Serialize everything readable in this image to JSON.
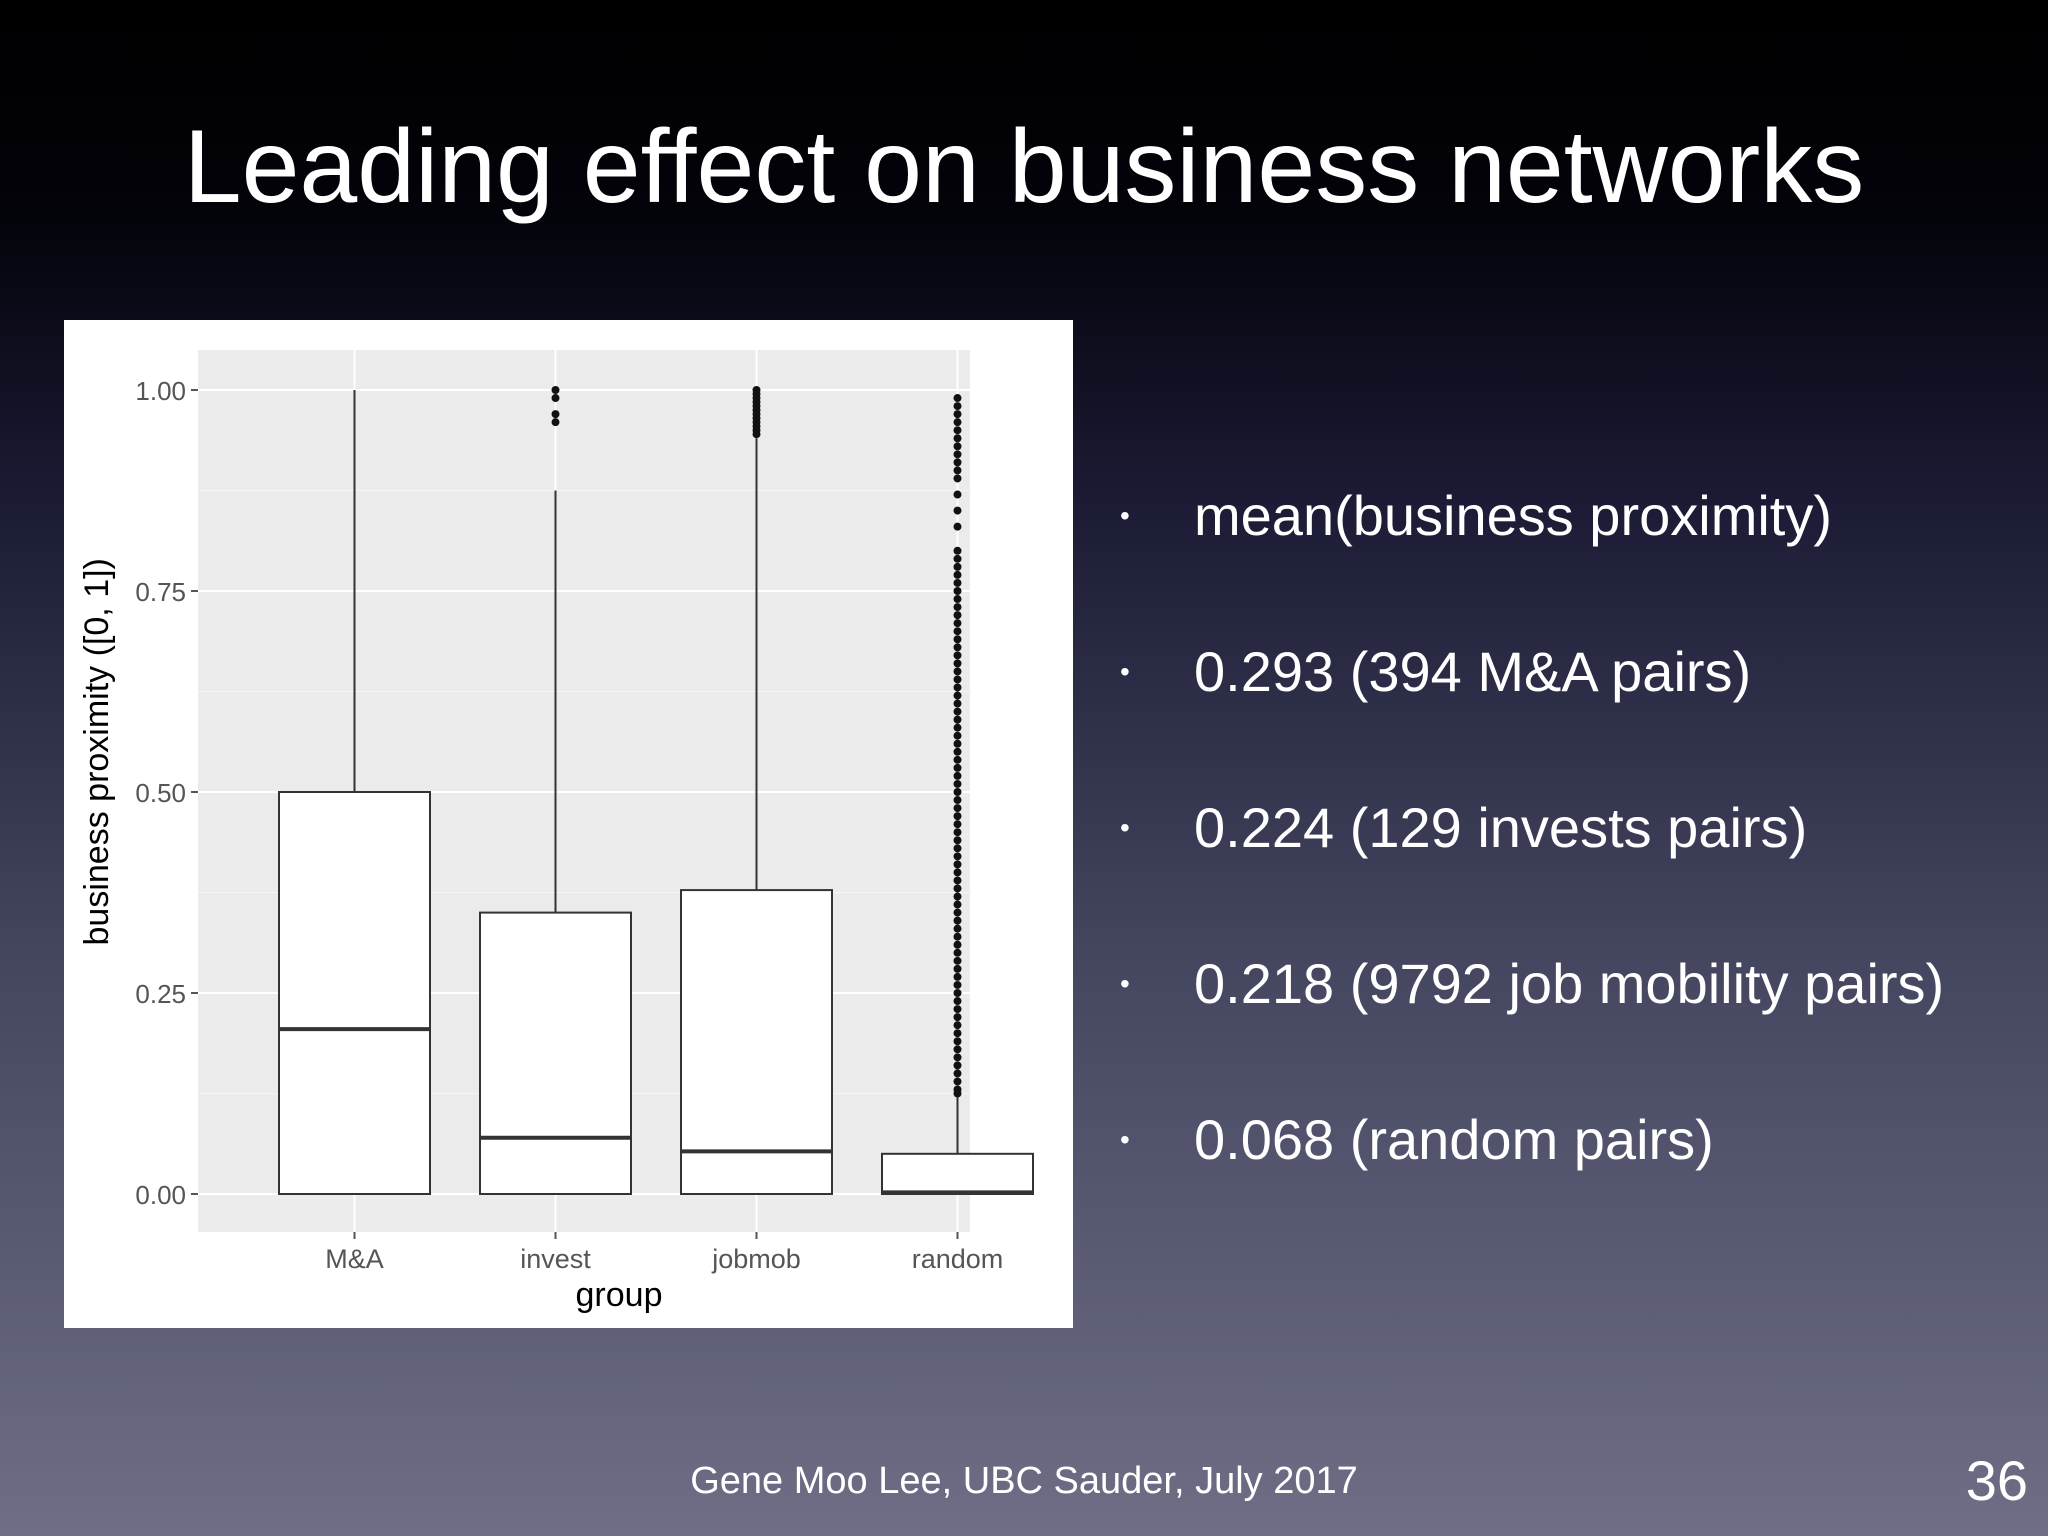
{
  "slide": {
    "title": "Leading effect on business networks",
    "footer": "Gene Moo Lee, UBC Sauder, July 2017",
    "page_number": "36"
  },
  "bullets": [
    "mean(business proximity)",
    "0.293 (394 M&A pairs)",
    "0.224 (129 invests pairs)",
    "0.218 (9792 job mobility pairs)",
    "0.068 (random pairs)"
  ],
  "chart_data": {
    "type": "box",
    "xlabel": "group",
    "ylabel": "business proximity ([0, 1])",
    "ylim": [
      0,
      1
    ],
    "yticks": [
      0,
      0.25,
      0.5,
      0.75,
      1.0
    ],
    "ytick_labels": [
      "0.00",
      "0.25",
      "0.50",
      "0.75",
      "1.00"
    ],
    "categories": [
      "M&A",
      "invest",
      "jobmob",
      "random"
    ],
    "grid": true,
    "background": "#ebebeb",
    "boxes": [
      {
        "name": "M&A",
        "lower_whisker": 0,
        "q1": 0,
        "median": 0.205,
        "q3": 0.5,
        "upper_whisker": 1.0,
        "outliers": []
      },
      {
        "name": "invest",
        "lower_whisker": 0,
        "q1": 0,
        "median": 0.07,
        "q3": 0.35,
        "upper_whisker": 0.875,
        "outliers": [
          0.96,
          0.97,
          0.99,
          1.0
        ]
      },
      {
        "name": "jobmob",
        "lower_whisker": 0,
        "q1": 0,
        "median": 0.053,
        "q3": 0.378,
        "upper_whisker": 0.94,
        "outliers": [
          0.945,
          0.95,
          0.955,
          0.96,
          0.965,
          0.97,
          0.975,
          0.98,
          0.985,
          0.99,
          0.995,
          1.0
        ]
      },
      {
        "name": "random",
        "lower_whisker": 0,
        "q1": 0,
        "median": 0.002,
        "q3": 0.05,
        "upper_whisker": 0.12,
        "outliers": [
          0.125,
          0.13,
          0.14,
          0.15,
          0.16,
          0.17,
          0.18,
          0.19,
          0.2,
          0.21,
          0.22,
          0.23,
          0.24,
          0.25,
          0.26,
          0.27,
          0.28,
          0.29,
          0.3,
          0.31,
          0.32,
          0.33,
          0.34,
          0.35,
          0.36,
          0.37,
          0.38,
          0.39,
          0.4,
          0.41,
          0.42,
          0.43,
          0.44,
          0.45,
          0.46,
          0.47,
          0.48,
          0.49,
          0.5,
          0.51,
          0.52,
          0.53,
          0.54,
          0.55,
          0.56,
          0.57,
          0.58,
          0.59,
          0.6,
          0.61,
          0.62,
          0.63,
          0.64,
          0.65,
          0.66,
          0.67,
          0.68,
          0.69,
          0.7,
          0.71,
          0.72,
          0.73,
          0.74,
          0.75,
          0.76,
          0.77,
          0.78,
          0.79,
          0.8,
          0.83,
          0.85,
          0.87,
          0.89,
          0.9,
          0.91,
          0.92,
          0.93,
          0.94,
          0.95,
          0.96,
          0.97,
          0.98,
          0.99
        ]
      }
    ]
  }
}
